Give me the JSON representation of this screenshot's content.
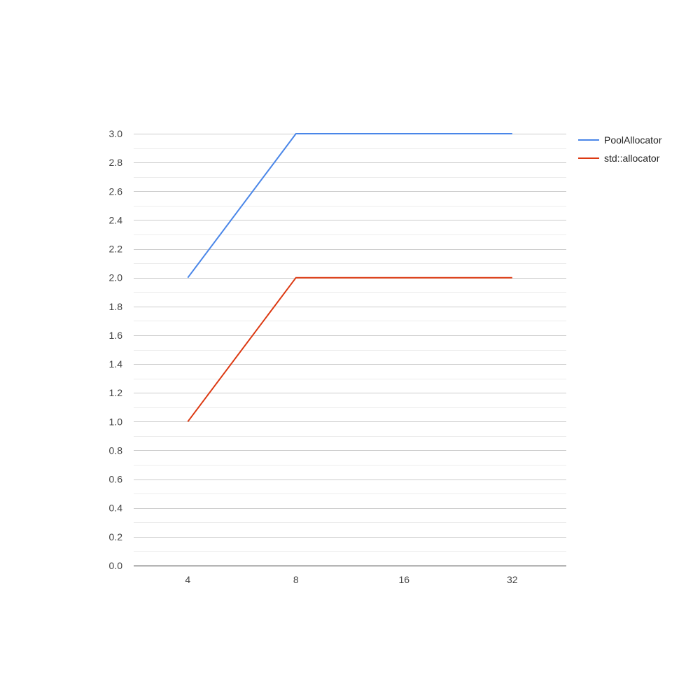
{
  "chart_data": {
    "type": "line",
    "categories": [
      "4",
      "8",
      "16",
      "32"
    ],
    "series": [
      {
        "name": "PoolAllocator",
        "values": [
          2,
          3,
          3,
          3
        ],
        "color": "#4a86e8"
      },
      {
        "name": "std::allocator",
        "values": [
          1,
          2,
          2,
          2
        ],
        "color": "#dc3912"
      }
    ],
    "ylim": [
      0,
      3
    ],
    "yticks": [
      "0.0",
      "0.2",
      "0.4",
      "0.6",
      "0.8",
      "1.0",
      "1.2",
      "1.4",
      "1.6",
      "1.8",
      "2.0",
      "2.2",
      "2.4",
      "2.6",
      "2.8",
      "3.0"
    ],
    "title": "",
    "xlabel": "",
    "ylabel": "",
    "grid": true,
    "minor_grid": true,
    "legend_position": "right"
  }
}
